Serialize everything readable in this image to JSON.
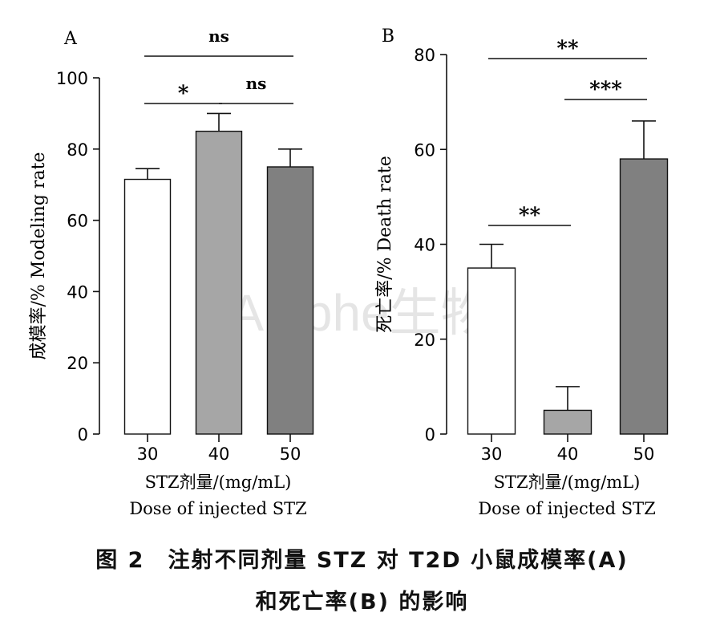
{
  "chart_data": [
    {
      "type": "bar",
      "panel_label": "A",
      "categories": [
        "30",
        "40",
        "50"
      ],
      "values": [
        71.5,
        85,
        75
      ],
      "error_upper": [
        74.5,
        90,
        80
      ],
      "bar_colors": [
        "#ffffff",
        "#a6a6a6",
        "#808080"
      ],
      "ylabel": "成模率/% Modeling rate",
      "xlabel_lines": [
        "STZ剂量/(mg/mL)",
        "Dose of injected STZ"
      ],
      "ylim": [
        0,
        100
      ],
      "yticks": [
        0,
        20,
        40,
        60,
        80,
        100
      ],
      "grid": false,
      "significance": [
        {
          "from": "30",
          "to": "50",
          "label": "ns",
          "level": 0
        },
        {
          "from": "30",
          "to": "40",
          "label": "*",
          "level": 1
        },
        {
          "from": "40",
          "to": "50",
          "label": "ns",
          "level": 1
        }
      ]
    },
    {
      "type": "bar",
      "panel_label": "B",
      "categories": [
        "30",
        "40",
        "50"
      ],
      "values": [
        35,
        5,
        58
      ],
      "error_upper": [
        40,
        10,
        66
      ],
      "bar_colors": [
        "#ffffff",
        "#a6a6a6",
        "#808080"
      ],
      "ylabel": "死亡率/% Death rate",
      "xlabel_lines": [
        "STZ剂量/(mg/mL)",
        "Dose of injected STZ"
      ],
      "ylim": [
        0,
        80
      ],
      "yticks": [
        0,
        20,
        40,
        60,
        80
      ],
      "grid": false,
      "significance": [
        {
          "from": "30",
          "to": "50",
          "label": "**",
          "level": 0
        },
        {
          "from": "40",
          "to": "50",
          "label": "***",
          "level": 1
        },
        {
          "from": "30",
          "to": "40",
          "label": "**",
          "level": 2
        }
      ]
    }
  ],
  "watermark": "Aniphe生物",
  "caption": {
    "line1": "图 2　注射不同剂量 STZ 对 T2D 小鼠成模率(A)",
    "line2": "和死亡率(B) 的影响"
  }
}
